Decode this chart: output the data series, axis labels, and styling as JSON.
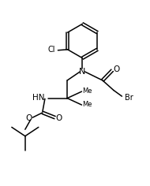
{
  "bg_color": "#ffffff",
  "line_color": "#000000",
  "lw": 1.1,
  "fs": 6.5,
  "fig_w": 1.9,
  "fig_h": 2.36,
  "dpi": 100,
  "xlim": [
    0,
    10
  ],
  "ylim": [
    0,
    12.4
  ]
}
